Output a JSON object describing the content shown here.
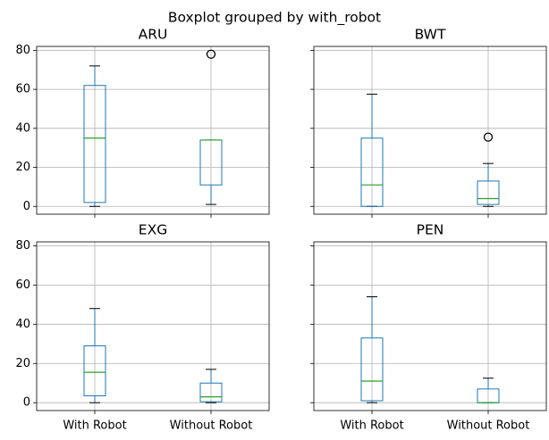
{
  "title": "Boxplot grouped by with_robot",
  "chart_data": [
    {
      "type": "box",
      "title": "ARU",
      "categories": [
        "With Robot",
        "Without Robot"
      ],
      "boxes": [
        {
          "whislo": 0,
          "q1": 2,
          "med": 35,
          "q3": 62,
          "whishi": 72
        },
        {
          "whislo": 1,
          "q1": 11,
          "med": 34,
          "q3": 34,
          "whishi": 34,
          "fliers": [
            78
          ]
        }
      ],
      "ylim": [
        -4,
        82
      ],
      "yticks": [
        0,
        20,
        40,
        60,
        80
      ],
      "xlim": [
        0.5,
        2.5
      ],
      "grid": true,
      "ytick_labels": true,
      "xtick_labels": false,
      "color": "#1f77b4",
      "median_color": "#2ca02c"
    },
    {
      "type": "box",
      "title": "BWT",
      "categories": [
        "With Robot",
        "Without Robot"
      ],
      "boxes": [
        {
          "whislo": 0,
          "q1": 0,
          "med": 11,
          "q3": 35,
          "whishi": 57.5
        },
        {
          "whislo": 0,
          "q1": 1,
          "med": 4,
          "q3": 13,
          "whishi": 22,
          "fliers": [
            35.5
          ]
        }
      ],
      "ylim": [
        -4,
        82
      ],
      "yticks": [
        0,
        20,
        40,
        60,
        80
      ],
      "xlim": [
        0.5,
        2.5
      ],
      "grid": true,
      "ytick_labels": false,
      "xtick_labels": false,
      "color": "#1f77b4",
      "median_color": "#2ca02c"
    },
    {
      "type": "box",
      "title": "EXG",
      "categories": [
        "With Robot",
        "Without Robot"
      ],
      "boxes": [
        {
          "whislo": 0,
          "q1": 3.5,
          "med": 15.5,
          "q3": 29,
          "whishi": 48
        },
        {
          "whislo": 0,
          "q1": 0.5,
          "med": 3,
          "q3": 10,
          "whishi": 17
        }
      ],
      "ylim": [
        -4,
        82
      ],
      "yticks": [
        0,
        20,
        40,
        60,
        80
      ],
      "xlim": [
        0.5,
        2.5
      ],
      "grid": true,
      "ytick_labels": true,
      "xtick_labels": true,
      "color": "#1f77b4",
      "median_color": "#2ca02c"
    },
    {
      "type": "box",
      "title": "PEN",
      "categories": [
        "With Robot",
        "Without Robot"
      ],
      "boxes": [
        {
          "whislo": 0,
          "q1": 1,
          "med": 11,
          "q3": 33,
          "whishi": 54
        },
        {
          "whislo": 0,
          "q1": 0,
          "med": 0,
          "q3": 7,
          "whishi": 12.5
        }
      ],
      "ylim": [
        -4,
        82
      ],
      "yticks": [
        0,
        20,
        40,
        60,
        80
      ],
      "xlim": [
        0.5,
        2.5
      ],
      "grid": true,
      "ytick_labels": false,
      "xtick_labels": true,
      "color": "#1f77b4",
      "median_color": "#2ca02c"
    }
  ]
}
